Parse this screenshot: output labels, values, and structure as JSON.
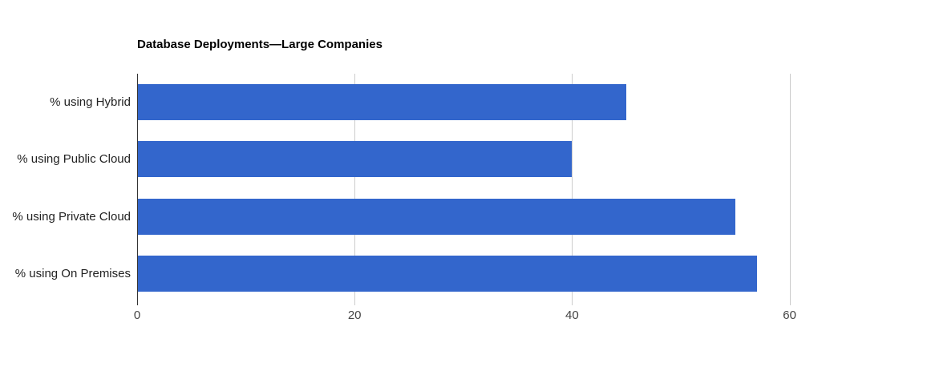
{
  "chart_data": {
    "type": "bar",
    "orientation": "horizontal",
    "title": "Database Deployments—Large Companies",
    "categories": [
      "% using Hybrid",
      "% using Public Cloud",
      "% using Private Cloud",
      "% using On Premises"
    ],
    "values": [
      45,
      40,
      55,
      57
    ],
    "xlabel": "",
    "ylabel": "",
    "xlim": [
      0,
      60
    ],
    "ticks": [
      0,
      20,
      40,
      60
    ],
    "grid": true,
    "legend": "none",
    "bar_color": "#3366CC",
    "gridline_color": "#cccccc",
    "axis_line_color": "#333333",
    "title_color": "#000000",
    "category_label_color": "#222222",
    "tick_label_color": "#444444"
  }
}
